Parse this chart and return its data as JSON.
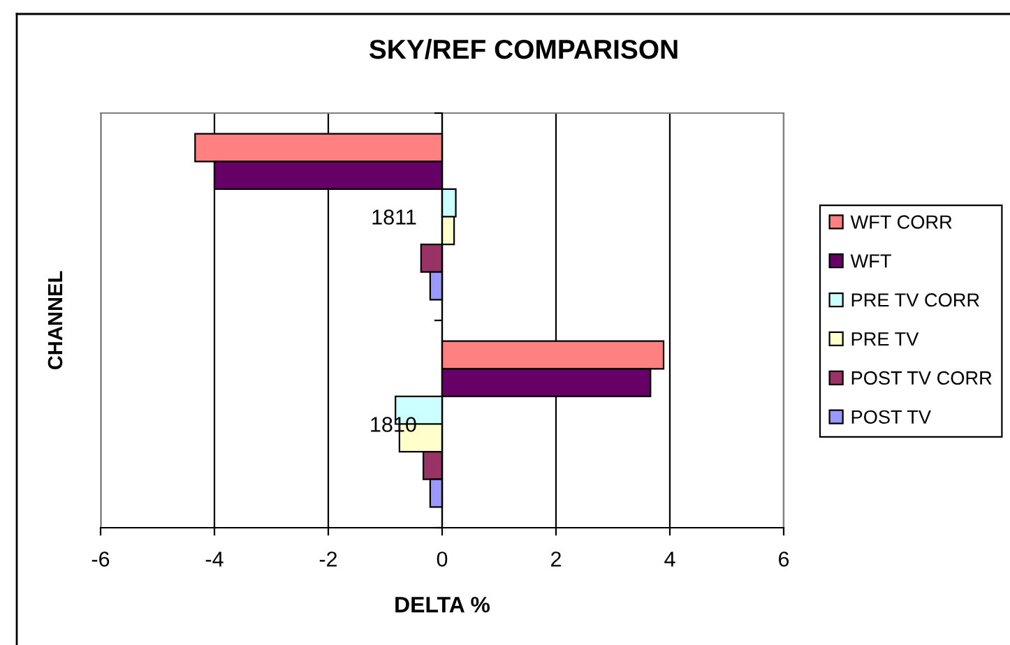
{
  "chart_data": {
    "type": "bar",
    "orientation": "horizontal",
    "title": "SKY/REF COMPARISON",
    "xlabel": "DELTA %",
    "ylabel": "CHANNEL",
    "categories": [
      "1811",
      "1810"
    ],
    "series": [
      {
        "name": "WFT CORR",
        "color": "#ff8080",
        "values": [
          -4.34,
          3.89
        ]
      },
      {
        "name": "WFT",
        "color": "#660066",
        "values": [
          -4.0,
          3.66
        ]
      },
      {
        "name": "PRE TV CORR",
        "color": "#ccffff",
        "values": [
          0.24,
          -0.82
        ]
      },
      {
        "name": "PRE TV",
        "color": "#ffffcc",
        "values": [
          0.21,
          -0.75
        ]
      },
      {
        "name": "POST TV CORR",
        "color": "#993366",
        "values": [
          -0.37,
          -0.33
        ]
      },
      {
        "name": "POST TV",
        "color": "#9999ff",
        "values": [
          -0.21,
          -0.21
        ]
      }
    ],
    "xlim": [
      -6,
      6
    ],
    "xticks": [
      -6,
      -4,
      -2,
      0,
      2,
      4,
      6
    ],
    "grid": "x",
    "legend": "right"
  }
}
